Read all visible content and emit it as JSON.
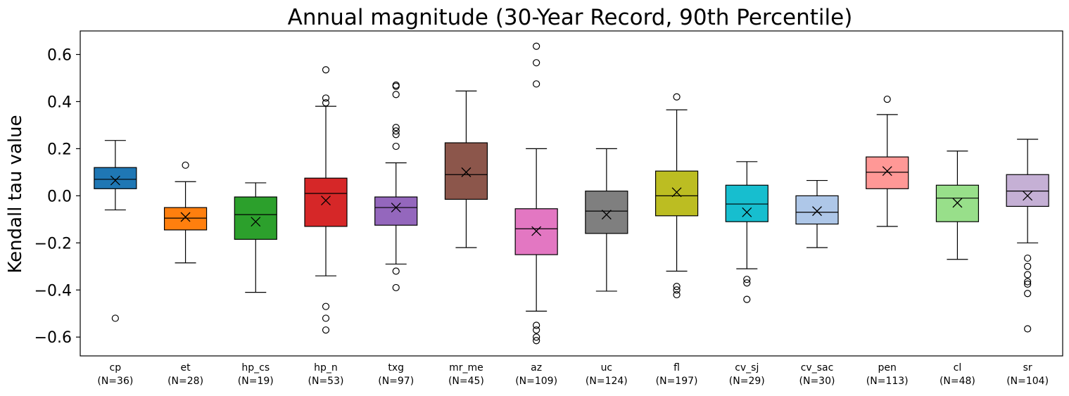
{
  "chart_data": {
    "type": "box",
    "title": "Annual magnitude (30-Year Record, 90th Percentile)",
    "xlabel": "",
    "ylabel": "Kendall tau value",
    "ylim": [
      -0.68,
      0.7
    ],
    "yticks": [
      -0.6,
      -0.4,
      -0.2,
      0.0,
      0.2,
      0.4,
      0.6
    ],
    "ytick_labels": [
      "−0.6",
      "−0.4",
      "−0.2",
      "0.0",
      "0.2",
      "0.4",
      "0.6"
    ],
    "grid": false,
    "legend": "none",
    "mean_marker": "x",
    "groups": [
      {
        "name": "cp",
        "n_label": "(N=36)",
        "color": "#1f77b4",
        "whisker_low": -0.06,
        "q1": 0.03,
        "median": 0.07,
        "q3": 0.12,
        "whisker_high": 0.235,
        "mean": 0.065,
        "outliers": [
          -0.52
        ]
      },
      {
        "name": "et",
        "n_label": "(N=28)",
        "color": "#ff7f0e",
        "whisker_low": -0.285,
        "q1": -0.145,
        "median": -0.095,
        "q3": -0.05,
        "whisker_high": 0.06,
        "mean": -0.09,
        "outliers": [
          0.13
        ]
      },
      {
        "name": "hp_cs",
        "n_label": "(N=19)",
        "color": "#2ca02c",
        "whisker_low": -0.41,
        "q1": -0.185,
        "median": -0.08,
        "q3": -0.005,
        "whisker_high": 0.055,
        "mean": -0.11,
        "outliers": []
      },
      {
        "name": "hp_n",
        "n_label": "(N=53)",
        "color": "#d62728",
        "whisker_low": -0.34,
        "q1": -0.13,
        "median": 0.01,
        "q3": 0.075,
        "whisker_high": 0.38,
        "mean": -0.02,
        "outliers": [
          0.535,
          0.415,
          0.395,
          -0.47,
          -0.52,
          -0.57
        ]
      },
      {
        "name": "txg",
        "n_label": "(N=97)",
        "color": "#9467bd",
        "whisker_low": -0.29,
        "q1": -0.125,
        "median": -0.05,
        "q3": -0.005,
        "whisker_high": 0.14,
        "mean": -0.05,
        "outliers": [
          0.47,
          0.465,
          0.43,
          0.29,
          0.275,
          0.26,
          0.21,
          -0.32,
          -0.39
        ]
      },
      {
        "name": "mr_me",
        "n_label": "(N=45)",
        "color": "#8c564b",
        "whisker_low": -0.22,
        "q1": -0.015,
        "median": 0.09,
        "q3": 0.225,
        "whisker_high": 0.445,
        "mean": 0.1,
        "outliers": []
      },
      {
        "name": "az",
        "n_label": "(N=109)",
        "color": "#e377c2",
        "whisker_low": -0.49,
        "q1": -0.25,
        "median": -0.14,
        "q3": -0.055,
        "whisker_high": 0.2,
        "mean": -0.15,
        "outliers": [
          0.635,
          0.565,
          0.475,
          -0.55,
          -0.57,
          -0.6,
          -0.615
        ]
      },
      {
        "name": "uc",
        "n_label": "(N=124)",
        "color": "#7f7f7f",
        "whisker_low": -0.405,
        "q1": -0.16,
        "median": -0.065,
        "q3": 0.02,
        "whisker_high": 0.2,
        "mean": -0.08,
        "outliers": []
      },
      {
        "name": "fl",
        "n_label": "(N=197)",
        "color": "#bcbd22",
        "whisker_low": -0.32,
        "q1": -0.085,
        "median": 0.0,
        "q3": 0.105,
        "whisker_high": 0.365,
        "mean": 0.015,
        "outliers": [
          0.42,
          -0.385,
          -0.4,
          -0.42
        ]
      },
      {
        "name": "cv_sj",
        "n_label": "(N=29)",
        "color": "#17becf",
        "whisker_low": -0.31,
        "q1": -0.11,
        "median": -0.035,
        "q3": 0.045,
        "whisker_high": 0.145,
        "mean": -0.07,
        "outliers": [
          -0.355,
          -0.37,
          -0.44
        ]
      },
      {
        "name": "cv_sac",
        "n_label": "(N=30)",
        "color": "#aec7e8",
        "whisker_low": -0.22,
        "q1": -0.12,
        "median": -0.07,
        "q3": 0.0,
        "whisker_high": 0.065,
        "mean": -0.065,
        "outliers": []
      },
      {
        "name": "pen",
        "n_label": "(N=113)",
        "color": "#ff9896",
        "whisker_low": -0.13,
        "q1": 0.03,
        "median": 0.1,
        "q3": 0.165,
        "whisker_high": 0.345,
        "mean": 0.105,
        "outliers": [
          0.41
        ]
      },
      {
        "name": "cl",
        "n_label": "(N=48)",
        "color": "#98df8a",
        "whisker_low": -0.27,
        "q1": -0.11,
        "median": -0.01,
        "q3": 0.045,
        "whisker_high": 0.19,
        "mean": -0.03,
        "outliers": []
      },
      {
        "name": "sr",
        "n_label": "(N=104)",
        "color": "#c5b0d5",
        "whisker_low": -0.2,
        "q1": -0.045,
        "median": 0.02,
        "q3": 0.09,
        "whisker_high": 0.24,
        "mean": 0.0,
        "outliers": [
          -0.265,
          -0.3,
          -0.335,
          -0.365,
          -0.375,
          -0.415,
          -0.565
        ]
      }
    ]
  }
}
